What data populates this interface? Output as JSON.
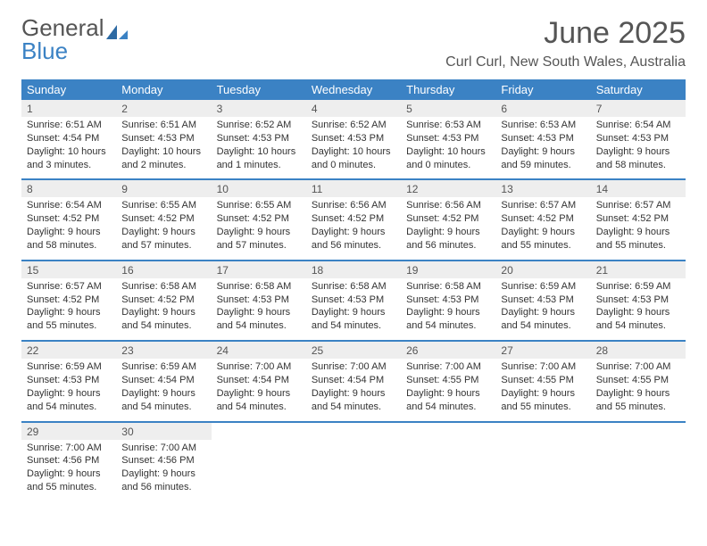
{
  "logo": {
    "text_gray": "General",
    "text_blue": "Blue"
  },
  "title": "June 2025",
  "subtitle": "Curl Curl, New South Wales, Australia",
  "colors": {
    "header_bg": "#3b82c4",
    "header_text": "#ffffff",
    "daynum_bg": "#eeeeee",
    "text": "#333333",
    "rule": "#3b82c4"
  },
  "typography": {
    "title_fontsize": 34,
    "subtitle_fontsize": 16,
    "dayheader_fontsize": 13,
    "daynum_fontsize": 12,
    "body_fontsize": 11
  },
  "day_headers": [
    "Sunday",
    "Monday",
    "Tuesday",
    "Wednesday",
    "Thursday",
    "Friday",
    "Saturday"
  ],
  "weeks": [
    [
      {
        "n": "1",
        "sunrise": "Sunrise: 6:51 AM",
        "sunset": "Sunset: 4:54 PM",
        "dl1": "Daylight: 10 hours",
        "dl2": "and 3 minutes."
      },
      {
        "n": "2",
        "sunrise": "Sunrise: 6:51 AM",
        "sunset": "Sunset: 4:53 PM",
        "dl1": "Daylight: 10 hours",
        "dl2": "and 2 minutes."
      },
      {
        "n": "3",
        "sunrise": "Sunrise: 6:52 AM",
        "sunset": "Sunset: 4:53 PM",
        "dl1": "Daylight: 10 hours",
        "dl2": "and 1 minutes."
      },
      {
        "n": "4",
        "sunrise": "Sunrise: 6:52 AM",
        "sunset": "Sunset: 4:53 PM",
        "dl1": "Daylight: 10 hours",
        "dl2": "and 0 minutes."
      },
      {
        "n": "5",
        "sunrise": "Sunrise: 6:53 AM",
        "sunset": "Sunset: 4:53 PM",
        "dl1": "Daylight: 10 hours",
        "dl2": "and 0 minutes."
      },
      {
        "n": "6",
        "sunrise": "Sunrise: 6:53 AM",
        "sunset": "Sunset: 4:53 PM",
        "dl1": "Daylight: 9 hours",
        "dl2": "and 59 minutes."
      },
      {
        "n": "7",
        "sunrise": "Sunrise: 6:54 AM",
        "sunset": "Sunset: 4:53 PM",
        "dl1": "Daylight: 9 hours",
        "dl2": "and 58 minutes."
      }
    ],
    [
      {
        "n": "8",
        "sunrise": "Sunrise: 6:54 AM",
        "sunset": "Sunset: 4:52 PM",
        "dl1": "Daylight: 9 hours",
        "dl2": "and 58 minutes."
      },
      {
        "n": "9",
        "sunrise": "Sunrise: 6:55 AM",
        "sunset": "Sunset: 4:52 PM",
        "dl1": "Daylight: 9 hours",
        "dl2": "and 57 minutes."
      },
      {
        "n": "10",
        "sunrise": "Sunrise: 6:55 AM",
        "sunset": "Sunset: 4:52 PM",
        "dl1": "Daylight: 9 hours",
        "dl2": "and 57 minutes."
      },
      {
        "n": "11",
        "sunrise": "Sunrise: 6:56 AM",
        "sunset": "Sunset: 4:52 PM",
        "dl1": "Daylight: 9 hours",
        "dl2": "and 56 minutes."
      },
      {
        "n": "12",
        "sunrise": "Sunrise: 6:56 AM",
        "sunset": "Sunset: 4:52 PM",
        "dl1": "Daylight: 9 hours",
        "dl2": "and 56 minutes."
      },
      {
        "n": "13",
        "sunrise": "Sunrise: 6:57 AM",
        "sunset": "Sunset: 4:52 PM",
        "dl1": "Daylight: 9 hours",
        "dl2": "and 55 minutes."
      },
      {
        "n": "14",
        "sunrise": "Sunrise: 6:57 AM",
        "sunset": "Sunset: 4:52 PM",
        "dl1": "Daylight: 9 hours",
        "dl2": "and 55 minutes."
      }
    ],
    [
      {
        "n": "15",
        "sunrise": "Sunrise: 6:57 AM",
        "sunset": "Sunset: 4:52 PM",
        "dl1": "Daylight: 9 hours",
        "dl2": "and 55 minutes."
      },
      {
        "n": "16",
        "sunrise": "Sunrise: 6:58 AM",
        "sunset": "Sunset: 4:52 PM",
        "dl1": "Daylight: 9 hours",
        "dl2": "and 54 minutes."
      },
      {
        "n": "17",
        "sunrise": "Sunrise: 6:58 AM",
        "sunset": "Sunset: 4:53 PM",
        "dl1": "Daylight: 9 hours",
        "dl2": "and 54 minutes."
      },
      {
        "n": "18",
        "sunrise": "Sunrise: 6:58 AM",
        "sunset": "Sunset: 4:53 PM",
        "dl1": "Daylight: 9 hours",
        "dl2": "and 54 minutes."
      },
      {
        "n": "19",
        "sunrise": "Sunrise: 6:58 AM",
        "sunset": "Sunset: 4:53 PM",
        "dl1": "Daylight: 9 hours",
        "dl2": "and 54 minutes."
      },
      {
        "n": "20",
        "sunrise": "Sunrise: 6:59 AM",
        "sunset": "Sunset: 4:53 PM",
        "dl1": "Daylight: 9 hours",
        "dl2": "and 54 minutes."
      },
      {
        "n": "21",
        "sunrise": "Sunrise: 6:59 AM",
        "sunset": "Sunset: 4:53 PM",
        "dl1": "Daylight: 9 hours",
        "dl2": "and 54 minutes."
      }
    ],
    [
      {
        "n": "22",
        "sunrise": "Sunrise: 6:59 AM",
        "sunset": "Sunset: 4:53 PM",
        "dl1": "Daylight: 9 hours",
        "dl2": "and 54 minutes."
      },
      {
        "n": "23",
        "sunrise": "Sunrise: 6:59 AM",
        "sunset": "Sunset: 4:54 PM",
        "dl1": "Daylight: 9 hours",
        "dl2": "and 54 minutes."
      },
      {
        "n": "24",
        "sunrise": "Sunrise: 7:00 AM",
        "sunset": "Sunset: 4:54 PM",
        "dl1": "Daylight: 9 hours",
        "dl2": "and 54 minutes."
      },
      {
        "n": "25",
        "sunrise": "Sunrise: 7:00 AM",
        "sunset": "Sunset: 4:54 PM",
        "dl1": "Daylight: 9 hours",
        "dl2": "and 54 minutes."
      },
      {
        "n": "26",
        "sunrise": "Sunrise: 7:00 AM",
        "sunset": "Sunset: 4:55 PM",
        "dl1": "Daylight: 9 hours",
        "dl2": "and 54 minutes."
      },
      {
        "n": "27",
        "sunrise": "Sunrise: 7:00 AM",
        "sunset": "Sunset: 4:55 PM",
        "dl1": "Daylight: 9 hours",
        "dl2": "and 55 minutes."
      },
      {
        "n": "28",
        "sunrise": "Sunrise: 7:00 AM",
        "sunset": "Sunset: 4:55 PM",
        "dl1": "Daylight: 9 hours",
        "dl2": "and 55 minutes."
      }
    ],
    [
      {
        "n": "29",
        "sunrise": "Sunrise: 7:00 AM",
        "sunset": "Sunset: 4:56 PM",
        "dl1": "Daylight: 9 hours",
        "dl2": "and 55 minutes."
      },
      {
        "n": "30",
        "sunrise": "Sunrise: 7:00 AM",
        "sunset": "Sunset: 4:56 PM",
        "dl1": "Daylight: 9 hours",
        "dl2": "and 56 minutes."
      },
      null,
      null,
      null,
      null,
      null
    ]
  ]
}
